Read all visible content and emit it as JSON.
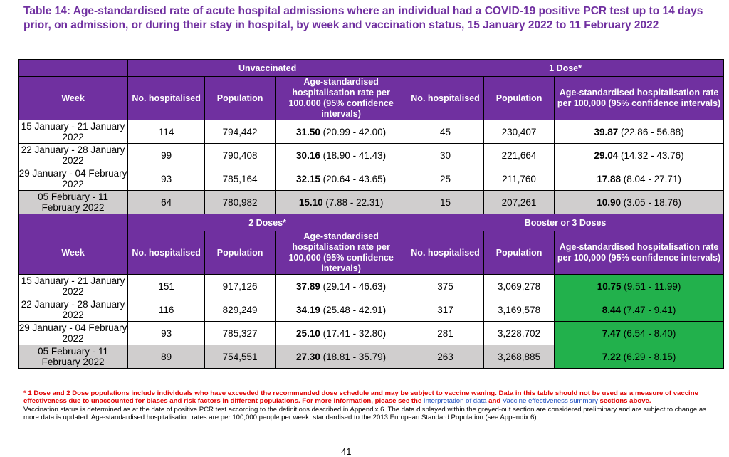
{
  "title": "Table 14: Age-standardised rate of acute hospital admissions where an individual had a COVID-19 positive PCR test up to 14 days prior, on admission, or during their stay in hospital, by week and vaccination status, 15 January 2022 to 11 February 2022",
  "columns": {
    "week": "Week",
    "hosp": "No. hospitalised",
    "pop": "Population",
    "rate": "Age-standardised hospitalisation rate per 100,000 (95% confidence intervals)"
  },
  "groups": {
    "unvaccinated": "Unvaccinated",
    "dose1": "1 Dose*",
    "dose2": "2 Doses*",
    "booster": "Booster or 3 Doses"
  },
  "weeks": [
    "15 January - 21 January 2022",
    "22 January - 28 January 2022",
    "29 January - 04 February 2022",
    "05 February - 11 February 2022"
  ],
  "top_rows": [
    {
      "a_hosp": "114",
      "a_pop": "794,442",
      "a_rate": "31.50",
      "a_ci": "(20.99 - 42.00)",
      "b_hosp": "45",
      "b_pop": "230,407",
      "b_rate": "39.87",
      "b_ci": "(22.86 - 56.88)"
    },
    {
      "a_hosp": "99",
      "a_pop": "790,408",
      "a_rate": "30.16",
      "a_ci": "(18.90 - 41.43)",
      "b_hosp": "30",
      "b_pop": "221,664",
      "b_rate": "29.04",
      "b_ci": "(14.32 - 43.76)"
    },
    {
      "a_hosp": "93",
      "a_pop": "785,164",
      "a_rate": "32.15",
      "a_ci": "(20.64 - 43.65)",
      "b_hosp": "25",
      "b_pop": "211,760",
      "b_rate": "17.88",
      "b_ci": "(8.04 - 27.71)"
    },
    {
      "a_hosp": "64",
      "a_pop": "780,982",
      "a_rate": "15.10",
      "a_ci": "(7.88 - 22.31)",
      "b_hosp": "15",
      "b_pop": "207,261",
      "b_rate": "10.90",
      "b_ci": "(3.05 - 18.76)"
    }
  ],
  "bottom_rows": [
    {
      "a_hosp": "151",
      "a_pop": "917,126",
      "a_rate": "37.89",
      "a_ci": "(29.14 - 46.63)",
      "b_hosp": "375",
      "b_pop": "3,069,278",
      "b_rate": "10.75",
      "b_ci": "(9.51 - 11.99)"
    },
    {
      "a_hosp": "116",
      "a_pop": "829,249",
      "a_rate": "34.19",
      "a_ci": "(25.48 - 42.91)",
      "b_hosp": "317",
      "b_pop": "3,169,578",
      "b_rate": "8.44",
      "b_ci": "(7.47 - 9.41)"
    },
    {
      "a_hosp": "93",
      "a_pop": "785,327",
      "a_rate": "25.10",
      "a_ci": "(17.41 - 32.80)",
      "b_hosp": "281",
      "b_pop": "3,228,702",
      "b_rate": "7.47",
      "b_ci": "(6.54 - 8.40)"
    },
    {
      "a_hosp": "89",
      "a_pop": "754,551",
      "a_rate": "27.30",
      "a_ci": "(18.81 - 35.79)",
      "b_hosp": "263",
      "b_pop": "3,268,885",
      "b_rate": "7.22",
      "b_ci": "(6.29 - 8.15)"
    }
  ],
  "colors": {
    "header": "#7030A0",
    "grey_row": "#D0CECE",
    "highlight": "#22B14C",
    "note_red": "#E00000",
    "link": "#1F4FBF"
  },
  "notes": {
    "red_text": "* 1 Dose and 2 Dose populations include individuals who have exceeded the recommended dose schedule and may be subject to vaccine waning. Data in this table should not be used as a measure of vaccine effectiveness due to unaccounted for biases and risk factors in different populations. For more information, please see the",
    "link1": "Interpretation of data",
    "and_text": "and",
    "link2": "Vaccine effectiveness summary",
    "tail_text": "sections above.",
    "plain": "Vaccination status is determined as at the date of positive PCR test according to the definitions described in Appendix 6. The data displayed within the greyed-out section are considered preliminary and are subject to change as more data is updated. Age-standardised hospitalisation rates are per 100,000 people per week, standardised to the 2013 European Standard Population (see Appendix 6)."
  },
  "page_number": "41"
}
